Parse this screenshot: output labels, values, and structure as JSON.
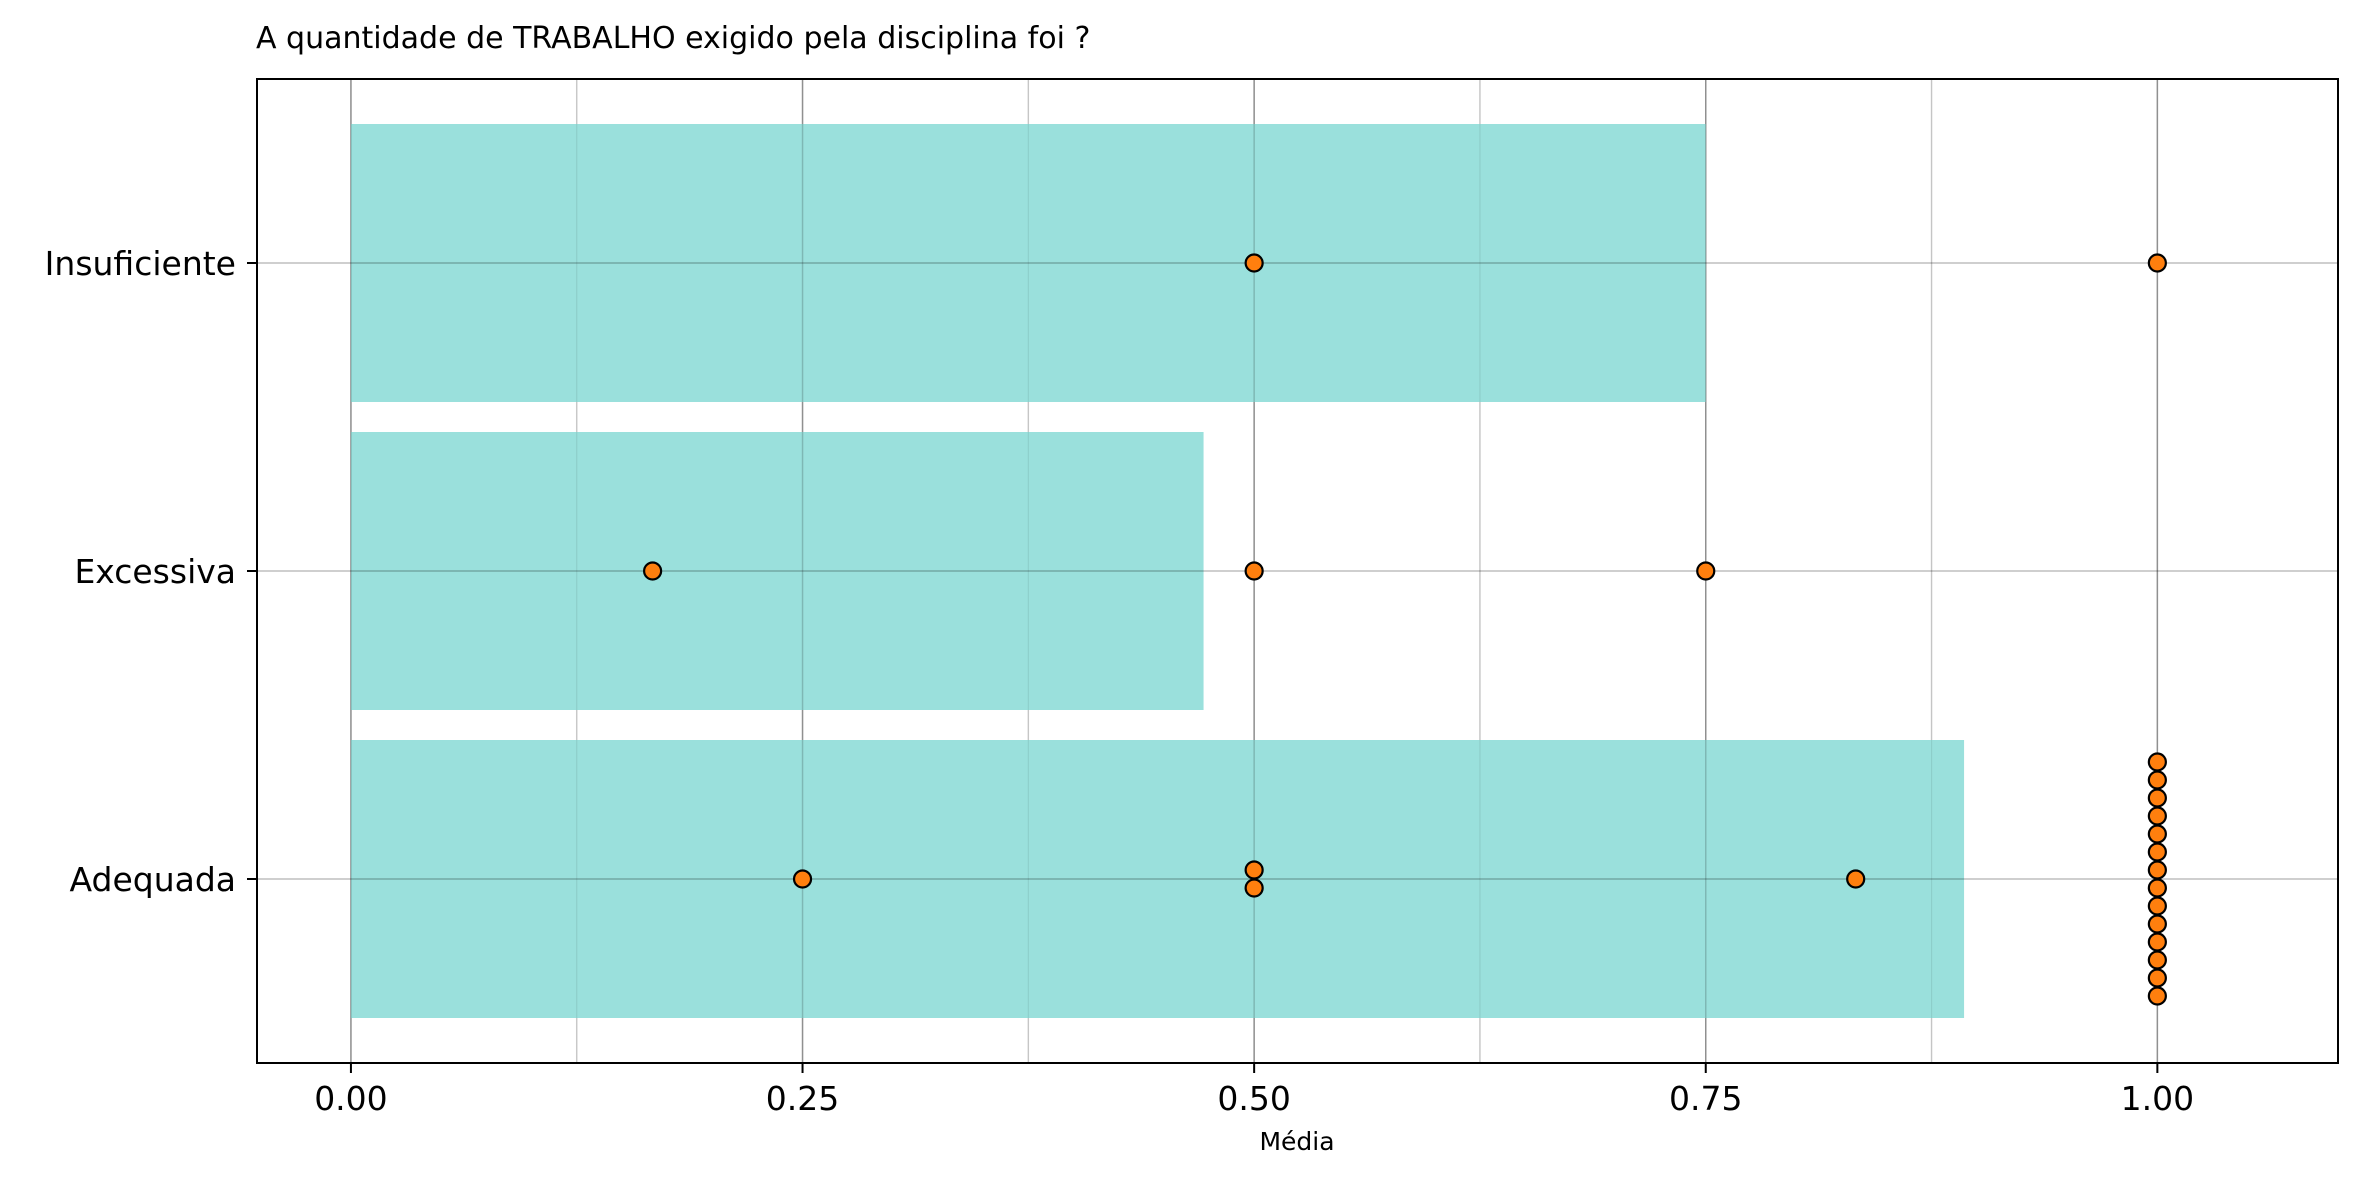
{
  "chart_data": {
    "type": "bar",
    "orientation": "horizontal",
    "title": "A quantidade de TRABALHO exigido pela disciplina foi ?",
    "xlabel": "Média",
    "ylabel": "",
    "categories": [
      "Insuficiente",
      "Excessiva",
      "Adequada"
    ],
    "values": [
      0.75,
      0.472,
      0.893
    ],
    "xlim": [
      -0.052,
      1.1
    ],
    "xticks": [
      0.0,
      0.25,
      0.5,
      0.75,
      1.0
    ],
    "xtick_labels": [
      "0.00",
      "0.25",
      "0.50",
      "0.75",
      "1.00"
    ],
    "minor_xticks": [
      0.125,
      0.375,
      0.625,
      0.875
    ],
    "grid": true,
    "bar_color": "#9ae0dc",
    "point_color": "#ff7f0e",
    "point_edge_color": "#000000",
    "points": [
      {
        "category": "Insuficiente",
        "values": [
          0.5,
          1.0
        ]
      },
      {
        "category": "Excessiva",
        "values": [
          0.167,
          0.5,
          0.75
        ]
      },
      {
        "category": "Adequada",
        "values": [
          0.25,
          0.5,
          0.5,
          0.833,
          1.0,
          1.0,
          1.0,
          1.0,
          1.0,
          1.0,
          1.0,
          1.0,
          1.0,
          1.0,
          1.0,
          1.0,
          1.0,
          1.0
        ]
      }
    ]
  }
}
